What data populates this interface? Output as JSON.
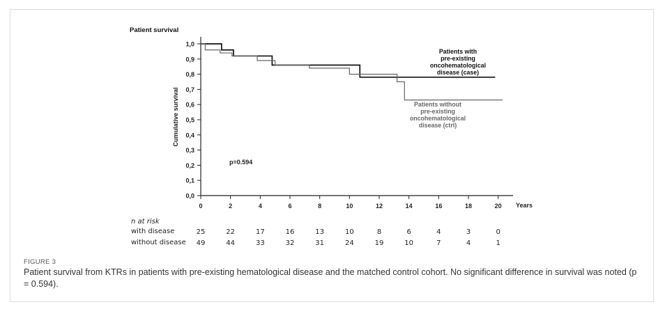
{
  "figure": {
    "label": "FIGURE 3",
    "caption": "Patient survival from KTRs in patients with pre-existing hematological disease and the matched control cohort. No significant difference in survival was noted (p = 0.594)."
  },
  "chart_data": {
    "type": "line",
    "title": "Patient survival",
    "xlabel": "Years",
    "ylabel": "Cumulative survival",
    "xlim": [
      0,
      21
    ],
    "ylim": [
      0,
      1.0
    ],
    "x_ticks": [
      0,
      2,
      4,
      6,
      8,
      10,
      12,
      14,
      16,
      18,
      20
    ],
    "y_ticks": [
      "0,0",
      "0,1",
      "0,2",
      "0,3",
      "0,4",
      "0,5",
      "0,6",
      "0,7",
      "0,8",
      "0,9",
      "1,0"
    ],
    "grid": false,
    "annotation": "p=0.594",
    "series": [
      {
        "name": "Patients with pre-existing oncohematological disease (case)",
        "label_lines": [
          "Patients with",
          "pre-existing",
          "oncohematological",
          "disease (case)"
        ],
        "color": "#111111",
        "steps": [
          [
            0,
            1.0
          ],
          [
            1.4,
            0.96
          ],
          [
            2.2,
            0.92
          ],
          [
            4.8,
            0.86
          ],
          [
            10.7,
            0.78
          ],
          [
            19.8,
            0.78
          ]
        ]
      },
      {
        "name": "Patients without pre-existing oncohematological disease (ctrl)",
        "label_lines": [
          "Patients without",
          "pre-existing",
          "oncohematological",
          "disease (ctrl)"
        ],
        "color": "#666666",
        "steps": [
          [
            0,
            1.0
          ],
          [
            0.3,
            0.96
          ],
          [
            1.3,
            0.94
          ],
          [
            2.1,
            0.92
          ],
          [
            3.8,
            0.89
          ],
          [
            5.0,
            0.86
          ],
          [
            7.3,
            0.84
          ],
          [
            10.0,
            0.8
          ],
          [
            13.2,
            0.75
          ],
          [
            13.7,
            0.63
          ],
          [
            20.3,
            0.63
          ]
        ]
      }
    ],
    "risk_table": {
      "header": "n at risk",
      "rows": [
        {
          "label": "with disease",
          "values": [
            "25",
            "22",
            "17",
            "16",
            "13",
            "10",
            "8",
            "6",
            "4",
            "3",
            "0"
          ]
        },
        {
          "label": "without disease",
          "values": [
            "49",
            "44",
            "33",
            "32",
            "31",
            "24",
            "19",
            "10",
            "7",
            "4",
            "1"
          ]
        }
      ]
    }
  }
}
